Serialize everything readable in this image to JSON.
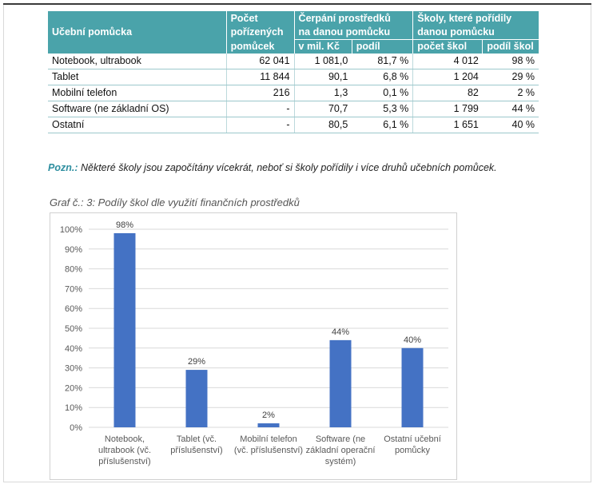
{
  "table": {
    "header": {
      "col1": "Učební pomůcka",
      "col2_line1": "Počet",
      "col2_line2": "pořízených",
      "col2_line3": "pomůcek",
      "col3_line1": "Čerpání prostředků",
      "col3_line2": "na danou pomůcku",
      "col4_line1": "Školy, které pořídily",
      "col4_line2": "danou pomůcku",
      "sub_mil": "v mil. Kč",
      "sub_share": "podíl",
      "sub_schools": "počet škol",
      "sub_school_share": "podíl škol"
    },
    "rows": [
      {
        "name": "Notebook, ultrabook",
        "count": "62 041",
        "mil": "1 081,0",
        "share": "81,7 %",
        "schools": "4 012",
        "school_share": "98 %"
      },
      {
        "name": "Tablet",
        "count": "11 844",
        "mil": "90,1",
        "share": "6,8 %",
        "schools": "1 204",
        "school_share": "29 %"
      },
      {
        "name": "Mobilní telefon",
        "count": "216",
        "mil": "1,3",
        "share": "0,1 %",
        "schools": "82",
        "school_share": "2 %"
      },
      {
        "name": "Software (ne základní OS)",
        "count": "-",
        "mil": "70,7",
        "share": "5,3 %",
        "schools": "1 799",
        "school_share": "44 %"
      },
      {
        "name": "Ostatní",
        "count": "-",
        "mil": "80,5",
        "share": "6,1 %",
        "schools": "1 651",
        "school_share": "40 %"
      }
    ]
  },
  "note": {
    "label": "Pozn.:",
    "text": " Některé školy jsou započítány vícekrát, neboť si školy pořídily i více druhů učebních pomůcek."
  },
  "chart_caption": "Graf č.: 3: Podíly škol dle využití finančních prostředků",
  "chart_data": {
    "type": "bar",
    "categories": [
      [
        "Notebook,",
        "ultrabook (vč.",
        "příslušenství)"
      ],
      [
        "Tablet (vč.",
        "příslušenství)"
      ],
      [
        "Mobilní telefon",
        "(vč. příslušenství)"
      ],
      [
        "Software (ne",
        "základní operační",
        "systém)"
      ],
      [
        "Ostatní učební",
        "pomůcky"
      ]
    ],
    "values": [
      98,
      29,
      2,
      44,
      40
    ],
    "data_labels": [
      "98%",
      "29%",
      "2%",
      "44%",
      "40%"
    ],
    "y_ticks": [
      "0%",
      "10%",
      "20%",
      "30%",
      "40%",
      "50%",
      "60%",
      "70%",
      "80%",
      "90%",
      "100%"
    ],
    "ylim": [
      0,
      100
    ],
    "grid": true,
    "bar_color": "#4472c4"
  }
}
